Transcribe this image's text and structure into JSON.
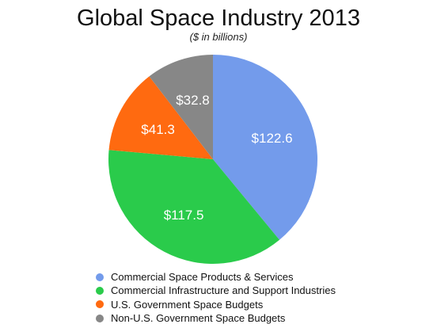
{
  "chart_data": {
    "type": "pie",
    "title": "Global Space Industry 2013",
    "subtitle": "($ in billions)",
    "slices": [
      {
        "label": "Commercial Space Products & Services",
        "value": 122.6,
        "value_label": "$122.6",
        "color": "#739BEB"
      },
      {
        "label": "Commercial Infrastructure and Support Industries",
        "value": 117.5,
        "value_label": "$117.5",
        "color": "#2ACB4B"
      },
      {
        "label": "U.S. Government Space Budgets",
        "value": 41.3,
        "value_label": "$41.3",
        "color": "#FF6A10"
      },
      {
        "label": "Non-U.S. Government Space Budgets",
        "value": 32.8,
        "value_label": "$32.8",
        "color": "#878787"
      }
    ],
    "start": "12 o'clock",
    "direction": "clockwise",
    "legend_position": "bottom"
  }
}
